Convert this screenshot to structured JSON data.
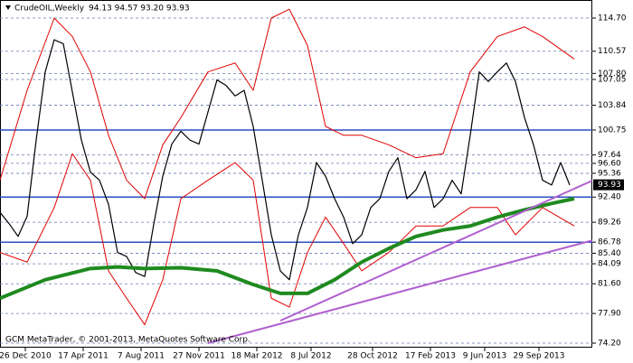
{
  "chart_data": {
    "type": "line",
    "title": "CrudeOIL,Weekly",
    "ohlc_text": "94.13 94.57 93.20 93.93",
    "footer": "GCM MetaTrader, © 2001-2013, MetaQuotes Software Corp.",
    "xlim": [
      0,
      163.75
    ],
    "xticks": [
      {
        "value": 7,
        "label": "26 Dec 2010"
      },
      {
        "value": 23,
        "label": "17 Apr 2011"
      },
      {
        "value": 39,
        "label": "7 Aug 2011"
      },
      {
        "value": 55,
        "label": "27 Nov 2011"
      },
      {
        "value": 71,
        "label": "18 Mar 2012"
      },
      {
        "value": 86,
        "label": "8 Jul 2012"
      },
      {
        "value": 103,
        "label": "28 Oct 2012"
      },
      {
        "value": 119,
        "label": "17 Feb 2013"
      },
      {
        "value": 134,
        "label": "9 Jun 2013"
      },
      {
        "value": 149,
        "label": "29 Sep 2013"
      }
    ],
    "ylim": [
      73.64,
      116.95
    ],
    "yticks": [
      {
        "value": 114.7,
        "label": "114.70"
      },
      110.57,
      {
        "value": 107.8,
        "label": "107.80"
      },
      107.05,
      103.84,
      100.75,
      97.64,
      {
        "value": 96.6,
        "label": "96.60"
      },
      95.36,
      {
        "value": 92.4,
        "label": "92.40"
      },
      89.26,
      86.78,
      {
        "value": 85.4,
        "label": "85.40"
      },
      84.09,
      {
        "value": 81.6,
        "label": "81.60"
      },
      {
        "value": 77.9,
        "label": "77.90"
      },
      {
        "value": 74.2,
        "label": "74.20"
      }
    ],
    "grid": true,
    "levels": [
      100.75,
      92.4,
      86.78
    ],
    "level_color": "#2a4fc0",
    "last_price": 93.93,
    "series": [
      {
        "color": "#000000",
        "width": 1.2,
        "x": [
          0,
          2.5,
          5,
          7.5,
          10,
          12.5,
          15,
          17.5,
          20,
          22.5,
          25,
          27.5,
          30,
          32.5,
          35,
          37.5,
          40,
          42.5,
          45,
          47.5,
          50,
          52.5,
          55,
          57.5,
          60,
          62.5,
          65,
          67.5,
          70,
          72.5,
          75,
          77.5,
          80,
          82.5,
          85,
          87.5,
          90,
          92.5,
          95,
          97.5,
          100,
          102.5,
          105,
          107.5,
          110,
          112.5,
          115,
          117.5,
          120,
          122.5,
          125,
          127.5,
          130,
          132.5,
          135,
          137.5,
          140,
          142.5,
          145,
          147.5,
          150,
          152.5,
          155,
          157.5
        ],
        "values": [
          90.5,
          89.1,
          87.5,
          90,
          99.5,
          108,
          112,
          111.5,
          105.5,
          99.5,
          95.5,
          94.5,
          91.5,
          85.5,
          85,
          83,
          82.5,
          89,
          95,
          99,
          100.6,
          99.5,
          99,
          103,
          107,
          106.3,
          105,
          105.7,
          101.2,
          94.5,
          87.7,
          83.2,
          82.1,
          87.7,
          91.1,
          96.7,
          95,
          92.2,
          89.9,
          86.6,
          87.7,
          91.1,
          92.2,
          95.6,
          97.3,
          92.2,
          93.3,
          95.6,
          91.1,
          92.2,
          94.5,
          92.8,
          100.1,
          108,
          106.8,
          108,
          109.1,
          106.8,
          102.3,
          98.9,
          94.5,
          93.9,
          96.7,
          93.9
        ]
      },
      {
        "color": "#e00000",
        "width": 1,
        "x": [
          0,
          7.5,
          15,
          20,
          25,
          30,
          35,
          40,
          45,
          50,
          57.5,
          65,
          70,
          75,
          80,
          85,
          90,
          95,
          100,
          107.5,
          115,
          122.5,
          130,
          137.5,
          145,
          150,
          158.75
        ],
        "values": [
          94.5,
          105.7,
          114.7,
          112.4,
          108,
          100.1,
          94.5,
          92.2,
          98.9,
          102.3,
          108,
          109.1,
          105.7,
          114.7,
          115.8,
          111.3,
          101.2,
          100.1,
          100.1,
          98.9,
          97.3,
          97.8,
          108,
          112.4,
          113.6,
          112.4,
          109.6
        ]
      },
      {
        "color": "#e00000",
        "width": 1,
        "x": [
          0,
          7.5,
          15,
          20,
          25,
          30,
          35,
          40,
          45,
          50,
          57.5,
          65,
          70,
          75,
          80,
          85,
          90,
          95,
          100,
          107.5,
          115,
          122.5,
          130,
          137.5,
          142.5,
          150,
          158.75
        ],
        "values": [
          85.5,
          84.3,
          91.1,
          97.8,
          94.5,
          83.2,
          79.8,
          76.5,
          82.1,
          92.2,
          94.5,
          96.7,
          94.5,
          79.8,
          78.7,
          85.5,
          89.9,
          86.6,
          83.2,
          85.5,
          88.8,
          88.8,
          91.1,
          91.1,
          87.7,
          91.1,
          88.8
        ]
      },
      {
        "color": "#1f8a1f",
        "width": 4,
        "x": [
          0,
          12.5,
          25,
          32.5,
          40,
          50,
          60,
          70,
          77.5,
          85,
          92.5,
          100,
          107.5,
          115,
          122.5,
          130,
          137.5,
          145,
          152.5,
          158.75
        ],
        "values": [
          79.8,
          82.1,
          83.5,
          83.7,
          83.5,
          83.6,
          83.2,
          81.5,
          80.4,
          80.4,
          82.1,
          84.3,
          86,
          87.5,
          88.3,
          88.8,
          89.9,
          90.8,
          91.6,
          92.2
        ]
      },
      {
        "color": "#b060d0",
        "width": 2,
        "x": [
          57.5,
          163.75
        ],
        "values": [
          74.2,
          87
        ]
      },
      {
        "color": "#b060d0",
        "width": 2,
        "x": [
          77.5,
          163.75
        ],
        "values": [
          77,
          94.45
        ]
      }
    ]
  }
}
